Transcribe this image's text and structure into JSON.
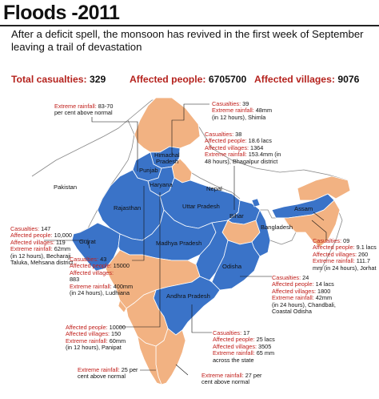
{
  "header": {
    "title": "Floods -2011",
    "subtitle": "After a deficit spell, the monsoon has revived in the first week of September leaving a trail of devastation"
  },
  "stats": {
    "casualties_label": "Total casualties:",
    "casualties_value": "329",
    "people_label": "Affected people:",
    "people_value": "6705700",
    "villages_label": "Affected villages:",
    "villages_value": "9076"
  },
  "colors": {
    "affected_state": "#3a73c8",
    "unaffected_state": "#f2b282",
    "label_red": "#c1201c"
  },
  "map": {
    "labels": {
      "pakistan": "Pakistan",
      "nepal": "Nepal",
      "bangladesh": "Bangladesh",
      "himachal": "Himachal",
      "pradesh": "Pradesh",
      "punjab": "Punjab",
      "haryana": "Haryana",
      "rajasthan": "Rajasthan",
      "uttar_pradesh": "Uttar Pradesh",
      "bihar": "Bihar",
      "assam": "Assam",
      "gujrat": "Gujrat",
      "madhya_pradesh": "Madhya Pradesh",
      "odisha": "Odisha",
      "andhra_pradesh": "Andhra Pradesh"
    }
  },
  "annotations": {
    "punjab_top": {
      "l1": "Extreme rainfall:",
      "l2": " 83-70",
      "l3": "per cent above normal"
    },
    "himachal": {
      "l1": "Casualties:",
      "l1v": " 39",
      "l2": "Extreme rainfall:",
      "l2v": " 48mm",
      "l3": "(in 12 hours), Shimla"
    },
    "bihar": {
      "l1": "Casualties:",
      "l1v": " 38",
      "l2": "Affected people:",
      "l2v": " 18.6 lacs",
      "l3": "Affected villages:",
      "l3v": " 1364",
      "l4": "Extreme rainfall:",
      "l4v": " 153.4mm (in",
      "l5": "48 hours), Bhagalpur district"
    },
    "gujrat": {
      "l1": "Casualties:",
      "l1v": " 147",
      "l2": "Affected people:",
      "l2v": " 10,000",
      "l3": "Affected villages:",
      "l3v": " 119",
      "l4": "Extreme rainfall:",
      "l4v": " 62mm",
      "l5": "(in 12 hours), Becharaji",
      "l6": "Taluka, Mehsana district"
    },
    "assam": {
      "l1": "Casualties:",
      "l1v": " 09",
      "l2": "Affected people:",
      "l2v": " 9.1 lacs",
      "l3": "Affected villages:",
      "l3v": " 260",
      "l4": "Extreme rainfall:",
      "l4v": " 111.7",
      "l5": "mm (in 24 hours), Jorhat"
    },
    "punjab": {
      "l1": "Casualties:",
      "l1v": " 43",
      "l2": "Affected people:",
      "l2v": " 15000",
      "l3": "Affected villages:",
      "l3v": "",
      "l4": "883",
      "l5": "Extreme rainfall:",
      "l5v": " 400mm",
      "l6": "(in 24 hours), Ludhiana"
    },
    "odisha": {
      "l1": "Casualties:",
      "l1v": " 24",
      "l2": "Affected people:",
      "l2v": " 14 lacs",
      "l3": "Affected villages:",
      "l3v": " 1800",
      "l4": "Extreme rainfall:",
      "l4v": " 42mm",
      "l5": "(in 24 hours), Chandbali,",
      "l6": "Coastal Odisha"
    },
    "haryana": {
      "l1": "Affected people:",
      "l1v": " 10000",
      "l2": "Affected villages:",
      "l2v": " 150",
      "l3": "Extreme rainfall:",
      "l3v": " 60mm",
      "l4": "(in 12 hours), Panipat"
    },
    "andhra": {
      "l1": "Casualties:",
      "l1v": " 17",
      "l2": "Affected people:",
      "l2v": " 25 lacs",
      "l3": "Affected villages:",
      "l3v": " 3505",
      "l4": "Extreme rainfall:",
      "l4v": " 65 mm",
      "l5": "across the state"
    },
    "south_west": {
      "l1": "Extreme rainfall:",
      "l1v": " 25 per",
      "l2": "cent above normal"
    },
    "south_east": {
      "l1": "Extreme rainfall:",
      "l1v": " 27 per",
      "l2": "cent above normal"
    }
  }
}
